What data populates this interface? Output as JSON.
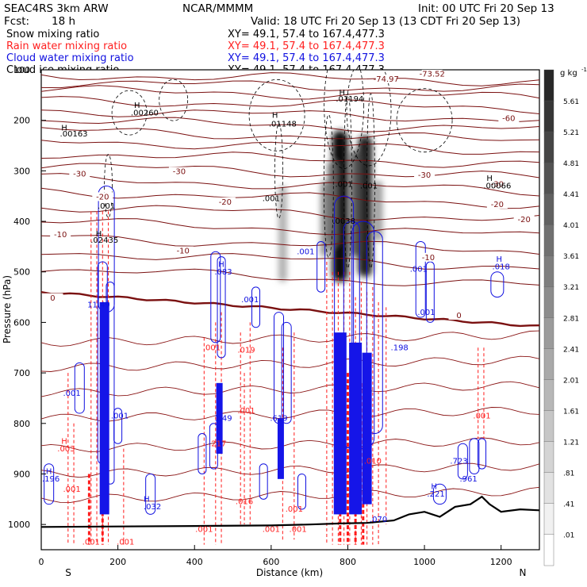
{
  "header": {
    "model": "SEAC4RS  3km ARW",
    "org": "NCAR/MMMM",
    "init": "Init: 00 UTC Fri 20 Sep 13",
    "fcst_label": "Fcst:",
    "fcst_value": "18 h",
    "valid": "Valid: 18 UTC Fri 20 Sep 13 (13 CDT Fri 20 Sep 13)"
  },
  "chart_data": {
    "type": "contour-cross-section",
    "fields": [
      {
        "name": "Snow mixing ratio",
        "xy": "XY=  49.1, 57.4 to 167.4,477.3",
        "color": "#000000"
      },
      {
        "name": "Rain water mixing ratio",
        "xy": "XY=  49.1, 57.4 to 167.4,477.3",
        "color": "#ff2020"
      },
      {
        "name": "Cloud water mixing ratio",
        "xy": "XY=  49.1, 57.4 to 167.4,477.3",
        "color": "#1010e0"
      },
      {
        "name": "Cloud ice mixing ratio",
        "xy": "XY=  49.1, 57.4 to 167.4,477.3",
        "color": "#000000"
      }
    ],
    "xlabel": "Distance (km)",
    "ylabel": "Pressure (hPa)",
    "xlim": [
      0,
      1300
    ],
    "ylim": [
      1050,
      100
    ],
    "x_ticks": [
      "0",
      "200",
      "400",
      "600",
      "800",
      "1000",
      "1200"
    ],
    "y_ticks": [
      "100",
      "200",
      "300",
      "400",
      "500",
      "600",
      "700",
      "800",
      "900",
      "1000"
    ],
    "x_end_labels": {
      "left": "S",
      "right": "N"
    },
    "colorbar": {
      "unit": "g kg",
      "unit_exp": "-1",
      "labels": [
        "5.61",
        "5.21",
        "4.81",
        "4.41",
        "4.01",
        "3.61",
        "3.21",
        "2.81",
        "2.41",
        "2.01",
        "1.61",
        "1.21",
        ".81",
        ".41",
        ".01"
      ]
    },
    "temperature_contours": [
      {
        "label": "-60",
        "x": 1220,
        "p": 200
      },
      {
        "label": "-73.52",
        "x": 1020,
        "p": 112
      },
      {
        "label": "-74.97",
        "x": 900,
        "p": 122
      },
      {
        "label": "-30",
        "x": 100,
        "p": 310
      },
      {
        "label": "-30",
        "x": 360,
        "p": 305
      },
      {
        "label": "-30",
        "x": 1190,
        "p": 330
      },
      {
        "label": "-30",
        "x": 1000,
        "p": 312
      },
      {
        "label": "-20",
        "x": 160,
        "p": 355
      },
      {
        "label": "-20",
        "x": 480,
        "p": 365
      },
      {
        "label": "-20",
        "x": 1190,
        "p": 370
      },
      {
        "label": "-20",
        "x": 1260,
        "p": 400
      },
      {
        "label": "-10",
        "x": 50,
        "p": 430
      },
      {
        "label": "-10",
        "x": 370,
        "p": 462
      },
      {
        "label": "-10",
        "x": 1010,
        "p": 475
      },
      {
        "label": "0",
        "x": 30,
        "p": 555
      },
      {
        "label": "0",
        "x": 1090,
        "p": 590
      }
    ],
    "value_labels": [
      {
        "text": "H",
        "x": 60,
        "p": 220,
        "color": "#000000"
      },
      {
        "text": ".00163",
        "x": 85,
        "p": 232,
        "color": "#000000"
      },
      {
        "text": "H",
        "x": 250,
        "p": 175,
        "color": "#000000"
      },
      {
        "text": ".00260",
        "x": 270,
        "p": 190,
        "color": "#000000"
      },
      {
        "text": "H",
        "x": 610,
        "p": 195,
        "color": "#000000"
      },
      {
        "text": ".01148",
        "x": 630,
        "p": 212,
        "color": "#000000"
      },
      {
        "text": "H",
        "x": 785,
        "p": 150,
        "color": "#000000"
      },
      {
        "text": ".01194",
        "x": 805,
        "p": 163,
        "color": "#000000"
      },
      {
        "text": "H",
        "x": 1170,
        "p": 320,
        "color": "#000000"
      },
      {
        "text": ".00066",
        "x": 1190,
        "p": 335,
        "color": "#000000"
      },
      {
        "text": ".001",
        "x": 600,
        "p": 360,
        "color": "#000000"
      },
      {
        "text": ".001",
        "x": 790,
        "p": 332,
        "color": "#000000"
      },
      {
        "text": ".001",
        "x": 855,
        "p": 335,
        "color": "#000000"
      },
      {
        "text": ".001",
        "x": 170,
        "p": 375,
        "color": "#000000"
      },
      {
        "text": "H",
        "x": 150,
        "p": 430,
        "color": "#000000"
      },
      {
        "text": ".02435",
        "x": 165,
        "p": 442,
        "color": "#000000"
      },
      {
        "text": ".0038",
        "x": 790,
        "p": 405,
        "color": "#000000"
      },
      {
        "text": ".001",
        "x": 690,
        "p": 465,
        "color": "#1010e0"
      },
      {
        "text": "H",
        "x": 470,
        "p": 490,
        "color": "#1010e0"
      },
      {
        "text": ".083",
        "x": 475,
        "p": 505,
        "color": "#1010e0"
      },
      {
        "text": ".001",
        "x": 545,
        "p": 560,
        "color": "#1010e0"
      },
      {
        "text": "H",
        "x": 1195,
        "p": 480,
        "color": "#1010e0"
      },
      {
        "text": ".018",
        "x": 1200,
        "p": 495,
        "color": "#1010e0"
      },
      {
        "text": ".001",
        "x": 985,
        "p": 500,
        "color": "#1010e0"
      },
      {
        "text": "11.49",
        "x": 150,
        "p": 570,
        "color": "#1010e0"
      },
      {
        "text": ".001",
        "x": 1005,
        "p": 585,
        "color": "#1010e0"
      },
      {
        "text": ".001",
        "x": 445,
        "p": 655,
        "color": "#ff2020"
      },
      {
        "text": ".019",
        "x": 535,
        "p": 660,
        "color": "#ff2020"
      },
      {
        "text": ".198",
        "x": 935,
        "p": 655,
        "color": "#1010e0"
      },
      {
        "text": ".001",
        "x": 80,
        "p": 745,
        "color": "#1010e0"
      },
      {
        "text": ".001",
        "x": 205,
        "p": 790,
        "color": "#1010e0"
      },
      {
        "text": "1.49",
        "x": 475,
        "p": 795,
        "color": "#1010e0"
      },
      {
        "text": ".619",
        "x": 620,
        "p": 795,
        "color": "#1010e0"
      },
      {
        "text": ".001",
        "x": 535,
        "p": 780,
        "color": "#ff2020"
      },
      {
        "text": ".001",
        "x": 1150,
        "p": 790,
        "color": "#ff2020"
      },
      {
        "text": "H",
        "x": 60,
        "p": 840,
        "color": "#ff2020"
      },
      {
        "text": ".003",
        "x": 65,
        "p": 855,
        "color": "#ff2020"
      },
      {
        "text": ".217",
        "x": 460,
        "p": 845,
        "color": "#ff2020"
      },
      {
        "text": ".723",
        "x": 1090,
        "p": 880,
        "color": "#1010e0"
      },
      {
        "text": "H",
        "x": 20,
        "p": 900,
        "color": "#1010e0"
      },
      {
        "text": ".196",
        "x": 25,
        "p": 915,
        "color": "#1010e0"
      },
      {
        "text": ".001",
        "x": 80,
        "p": 935,
        "color": "#ff2020"
      },
      {
        "text": "H",
        "x": 275,
        "p": 955,
        "color": "#1010e0"
      },
      {
        "text": ".032",
        "x": 290,
        "p": 970,
        "color": "#1010e0"
      },
      {
        "text": ".016",
        "x": 530,
        "p": 960,
        "color": "#ff2020"
      },
      {
        "text": ".001",
        "x": 660,
        "p": 975,
        "color": "#ff2020"
      },
      {
        "text": "H",
        "x": 1025,
        "p": 930,
        "color": "#1010e0"
      },
      {
        "text": ".221",
        "x": 1030,
        "p": 945,
        "color": "#1010e0"
      },
      {
        "text": ".961",
        "x": 1115,
        "p": 915,
        "color": "#1010e0"
      },
      {
        "text": ".010",
        "x": 865,
        "p": 880,
        "color": "#ff2020"
      },
      {
        "text": ".070",
        "x": 880,
        "p": 995,
        "color": "#1010e0"
      },
      {
        "text": ".001",
        "x": 425,
        "p": 1015,
        "color": "#ff2020"
      },
      {
        "text": ".001",
        "x": 600,
        "p": 1015,
        "color": "#ff2020"
      },
      {
        "text": ".001",
        "x": 670,
        "p": 1015,
        "color": "#ff2020"
      },
      {
        "text": ".001",
        "x": 130,
        "p": 1040,
        "color": "#ff2020"
      },
      {
        "text": ".001",
        "x": 220,
        "p": 1040,
        "color": "#ff2020"
      }
    ]
  }
}
